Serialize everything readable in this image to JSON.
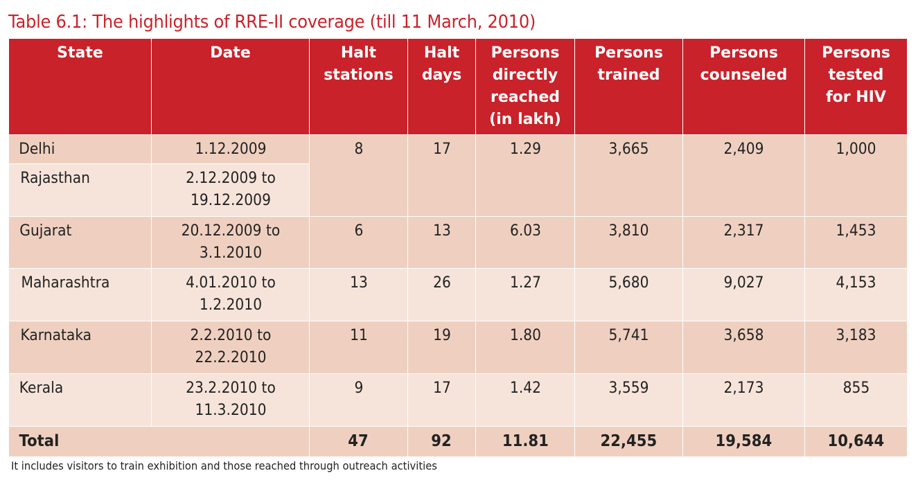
{
  "title": "Table 6.1: The highlights of RRE-II coverage (till 11 March, 2010)",
  "colors": {
    "header": "#c9222a",
    "row_dark": "#efd0c0",
    "row_light": "#f6e4da",
    "title": "#c9222a"
  },
  "table": {
    "headers": [
      "State",
      "Date",
      "Halt stations",
      "Halt days",
      "Persons directly reached (in lakh)",
      "Persons trained",
      "Persons counseled",
      "Persons tested for HIV"
    ],
    "rows": [
      {
        "state": "Delhi",
        "date": "1.12.2009",
        "halt_stations": "8",
        "halt_days": "17",
        "reached": "1.29",
        "trained": "3,665",
        "counseled": "2,409",
        "tested": "1,000"
      },
      {
        "state": "Rajasthan",
        "date": "2.12.2009 to 19.12.2009"
      },
      {
        "state": "Gujarat",
        "date": "20.12.2009 to 3.1.2010",
        "halt_stations": "6",
        "halt_days": "13",
        "reached": "6.03",
        "trained": "3,810",
        "counseled": "2,317",
        "tested": "1,453"
      },
      {
        "state": "Maharashtra",
        "date": "4.01.2010 to 1.2.2010",
        "halt_stations": "13",
        "halt_days": "26",
        "reached": "1.27",
        "trained": "5,680",
        "counseled": "9,027",
        "tested": "4,153"
      },
      {
        "state": "Karnataka",
        "date": "2.2.2010 to 22.2.2010",
        "halt_stations": "11",
        "halt_days": "19",
        "reached": "1.80",
        "trained": "5,741",
        "counseled": "3,658",
        "tested": "3,183"
      },
      {
        "state": "Kerala",
        "date": "23.2.2010 to 11.3.2010",
        "halt_stations": "9",
        "halt_days": "17",
        "reached": "1.42",
        "trained": "3,559",
        "counseled": "2,173",
        "tested": "855"
      }
    ],
    "total": {
      "label": "Total",
      "halt_stations": "47",
      "halt_days": "92",
      "reached": "11.81",
      "trained": "22,455",
      "counseled": "19,584",
      "tested": "10,644"
    }
  },
  "footnote": "It includes visitors to train exhibition and those reached through outreach activities"
}
